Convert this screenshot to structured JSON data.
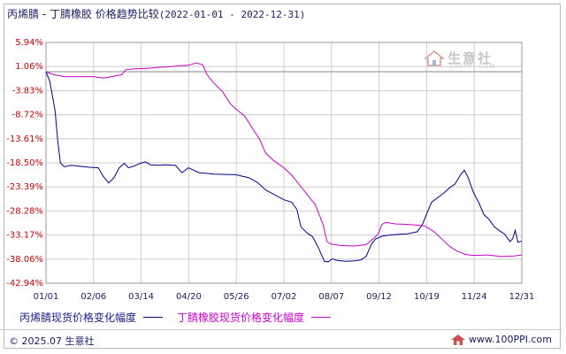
{
  "title": {
    "main": "丙烯腈 - 丁腈橡胶 价格趋势比较",
    "range": "(2022-01-01 - 2022-12-31)"
  },
  "legend": {
    "series1": "丙烯腈现货价格变化幅度",
    "series2": "丁腈橡胶现货价格变化幅度"
  },
  "watermark": {
    "text": "生意社",
    "sub": "100PPI.COM"
  },
  "footer": {
    "copyright": "© 2025.07 生意社",
    "site": "www.100PPI.com"
  },
  "colors": {
    "series1": "#00008b",
    "series2": "#cc00cc",
    "y_labels": "#cc0000",
    "grid": "#cccccc",
    "baseline": "#888888"
  },
  "chart_data": {
    "type": "line",
    "ylim": [
      -42.94,
      5.94
    ],
    "y_ticks": [
      5.94,
      1.06,
      -3.83,
      -8.72,
      -13.61,
      -18.5,
      -23.39,
      -28.28,
      -33.17,
      -38.06,
      -42.94
    ],
    "y_tick_labels": [
      "5.94%",
      "1.06%",
      "-3.83%",
      "-8.72%",
      "-13.61%",
      "-18.50%",
      "-23.39%",
      "-28.28%",
      "-33.17%",
      "-38.06%",
      "-42.94%"
    ],
    "x_tick_labels": [
      "01/01",
      "02/06",
      "03/14",
      "04/20",
      "05/26",
      "07/02",
      "08/07",
      "09/12",
      "10/19",
      "11/24",
      "12/31"
    ],
    "baseline": 0,
    "grid": true,
    "legend_position": "bottom",
    "series": [
      {
        "name": "丙烯腈现货价格变化幅度",
        "points": [
          [
            "2022-01-01",
            0.0
          ],
          [
            "2022-01-04",
            -2.0
          ],
          [
            "2022-01-06",
            -5.0
          ],
          [
            "2022-01-08",
            -8.0
          ],
          [
            "2022-01-10",
            -14.0
          ],
          [
            "2022-01-12",
            -18.5
          ],
          [
            "2022-01-15",
            -19.3
          ],
          [
            "2022-01-20",
            -19.0
          ],
          [
            "2022-01-27",
            -19.2
          ],
          [
            "2022-02-03",
            -19.4
          ],
          [
            "2022-02-10",
            -19.5
          ],
          [
            "2022-02-14",
            -21.3
          ],
          [
            "2022-02-18",
            -22.6
          ],
          [
            "2022-02-22",
            -21.5
          ],
          [
            "2022-02-26",
            -19.5
          ],
          [
            "2022-03-02",
            -18.6
          ],
          [
            "2022-03-05",
            -19.5
          ],
          [
            "2022-03-09",
            -19.2
          ],
          [
            "2022-03-14",
            -18.6
          ],
          [
            "2022-03-18",
            -18.3
          ],
          [
            "2022-03-22",
            -18.9
          ],
          [
            "2022-03-27",
            -19.0
          ],
          [
            "2022-04-02",
            -18.9
          ],
          [
            "2022-04-10",
            -19.0
          ],
          [
            "2022-04-15",
            -20.5
          ],
          [
            "2022-04-20",
            -19.5
          ],
          [
            "2022-04-28",
            -20.5
          ],
          [
            "2022-05-10",
            -20.8
          ],
          [
            "2022-05-26",
            -20.9
          ],
          [
            "2022-06-05",
            -21.5
          ],
          [
            "2022-06-12",
            -22.5
          ],
          [
            "2022-06-18",
            -24.0
          ],
          [
            "2022-06-25",
            -25.0
          ],
          [
            "2022-07-02",
            -26.0
          ],
          [
            "2022-07-08",
            -26.5
          ],
          [
            "2022-07-12",
            -28.0
          ],
          [
            "2022-07-15",
            -31.5
          ],
          [
            "2022-07-20",
            -32.8
          ],
          [
            "2022-07-24",
            -33.5
          ],
          [
            "2022-07-28",
            -35.5
          ],
          [
            "2022-08-02",
            -38.5
          ],
          [
            "2022-08-05",
            -38.6
          ],
          [
            "2022-08-08",
            -38.0
          ],
          [
            "2022-08-12",
            -38.3
          ],
          [
            "2022-08-18",
            -38.5
          ],
          [
            "2022-08-25",
            -38.4
          ],
          [
            "2022-08-30",
            -38.2
          ],
          [
            "2022-09-03",
            -37.5
          ],
          [
            "2022-09-07",
            -35.0
          ],
          [
            "2022-09-10",
            -34.0
          ],
          [
            "2022-09-15",
            -33.4
          ],
          [
            "2022-09-20",
            -33.2
          ],
          [
            "2022-09-28",
            -33.0
          ],
          [
            "2022-10-05",
            -32.9
          ],
          [
            "2022-10-12",
            -32.5
          ],
          [
            "2022-10-16",
            -31.0
          ],
          [
            "2022-10-19",
            -29.0
          ],
          [
            "2022-10-23",
            -26.5
          ],
          [
            "2022-10-28",
            -25.5
          ],
          [
            "2022-11-02",
            -24.5
          ],
          [
            "2022-11-06",
            -23.5
          ],
          [
            "2022-11-10",
            -22.8
          ],
          [
            "2022-11-14",
            -21.0
          ],
          [
            "2022-11-17",
            -20.0
          ],
          [
            "2022-11-20",
            -21.5
          ],
          [
            "2022-11-24",
            -24.5
          ],
          [
            "2022-11-28",
            -26.5
          ],
          [
            "2022-12-02",
            -29.0
          ],
          [
            "2022-12-06",
            -30.0
          ],
          [
            "2022-12-10",
            -31.5
          ],
          [
            "2022-12-14",
            -32.3
          ],
          [
            "2022-12-18",
            -33.0
          ],
          [
            "2022-12-20",
            -33.8
          ],
          [
            "2022-12-22",
            -34.5
          ],
          [
            "2022-12-24",
            -33.9
          ],
          [
            "2022-12-26",
            -32.2
          ],
          [
            "2022-12-28",
            -34.6
          ],
          [
            "2022-12-31",
            -34.4
          ]
        ]
      },
      {
        "name": "丁腈橡胶现货价格变化幅度",
        "points": [
          [
            "2022-01-01",
            0.0
          ],
          [
            "2022-01-07",
            -0.6
          ],
          [
            "2022-01-15",
            -1.0
          ],
          [
            "2022-01-25",
            -1.0
          ],
          [
            "2022-02-06",
            -1.0
          ],
          [
            "2022-02-14",
            -1.3
          ],
          [
            "2022-02-20",
            -1.0
          ],
          [
            "2022-02-28",
            -0.6
          ],
          [
            "2022-03-03",
            0.4
          ],
          [
            "2022-03-10",
            0.6
          ],
          [
            "2022-03-20",
            0.7
          ],
          [
            "2022-03-28",
            0.9
          ],
          [
            "2022-04-05",
            1.0
          ],
          [
            "2022-04-12",
            1.2
          ],
          [
            "2022-04-20",
            1.3
          ],
          [
            "2022-04-26",
            1.8
          ],
          [
            "2022-05-01",
            1.4
          ],
          [
            "2022-05-04",
            -0.5
          ],
          [
            "2022-05-10",
            -2.5
          ],
          [
            "2022-05-16",
            -4.0
          ],
          [
            "2022-05-22",
            -6.5
          ],
          [
            "2022-05-26",
            -7.5
          ],
          [
            "2022-06-02",
            -9.0
          ],
          [
            "2022-06-08",
            -11.5
          ],
          [
            "2022-06-14",
            -14.0
          ],
          [
            "2022-06-18",
            -16.5
          ],
          [
            "2022-06-24",
            -18.0
          ],
          [
            "2022-07-02",
            -19.5
          ],
          [
            "2022-07-08",
            -21.0
          ],
          [
            "2022-07-14",
            -23.0
          ],
          [
            "2022-07-20",
            -25.0
          ],
          [
            "2022-07-26",
            -27.0
          ],
          [
            "2022-08-01",
            -31.0
          ],
          [
            "2022-08-04",
            -34.5
          ],
          [
            "2022-08-07",
            -35.0
          ],
          [
            "2022-08-15",
            -35.3
          ],
          [
            "2022-08-25",
            -35.4
          ],
          [
            "2022-09-03",
            -35.1
          ],
          [
            "2022-09-08",
            -34.0
          ],
          [
            "2022-09-12",
            -33.0
          ],
          [
            "2022-09-15",
            -31.0
          ],
          [
            "2022-09-18",
            -30.6
          ],
          [
            "2022-09-25",
            -30.9
          ],
          [
            "2022-10-05",
            -31.0
          ],
          [
            "2022-10-15",
            -31.2
          ],
          [
            "2022-10-19",
            -31.5
          ],
          [
            "2022-10-25",
            -32.5
          ],
          [
            "2022-10-31",
            -34.0
          ],
          [
            "2022-11-06",
            -35.5
          ],
          [
            "2022-11-12",
            -36.5
          ],
          [
            "2022-11-18",
            -37.1
          ],
          [
            "2022-11-24",
            -37.3
          ],
          [
            "2022-12-05",
            -37.2
          ],
          [
            "2022-12-15",
            -37.5
          ],
          [
            "2022-12-25",
            -37.4
          ],
          [
            "2022-12-31",
            -37.2
          ]
        ]
      }
    ]
  }
}
